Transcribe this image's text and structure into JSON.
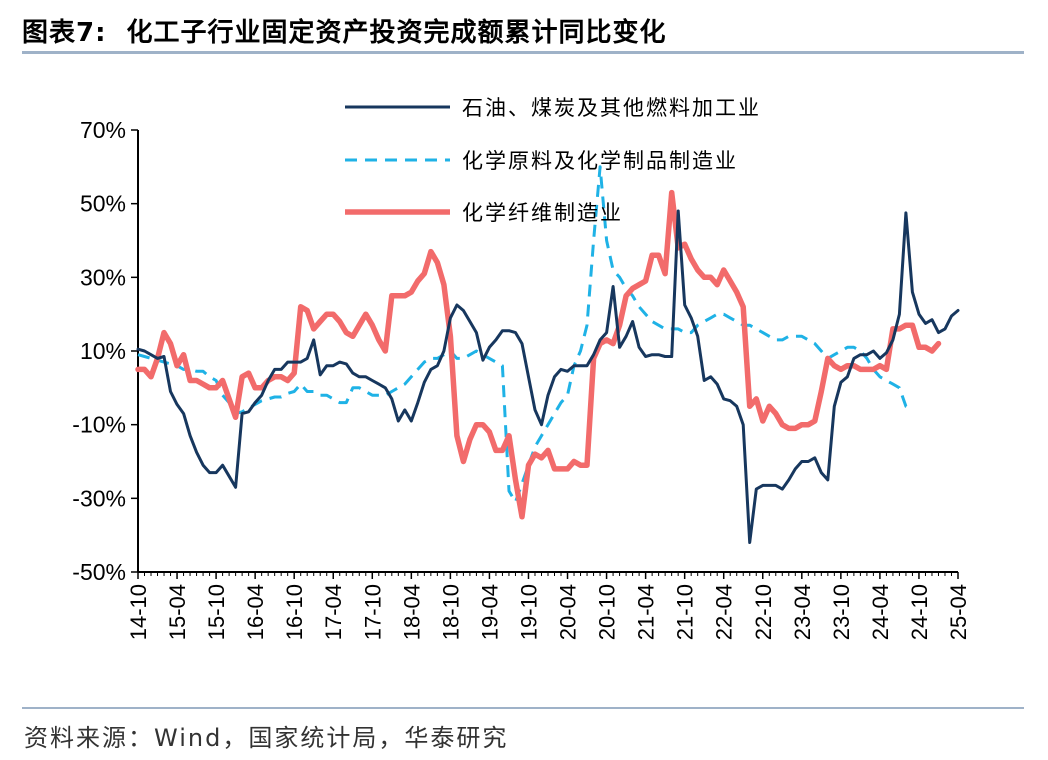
{
  "header": {
    "figure_label": "图表7:",
    "title": "化工子行业固定资产投资完成额累计同比变化"
  },
  "footer": {
    "source": "资料来源：Wind，国家统计局，华泰研究"
  },
  "chart_data": {
    "type": "line",
    "ylim": [
      -50,
      70
    ],
    "y_ticks": [
      "70%",
      "50%",
      "30%",
      "10%",
      "-10%",
      "-30%",
      "-50%"
    ],
    "y_tick_values": [
      70,
      50,
      30,
      10,
      -10,
      -30,
      -50
    ],
    "x_tick_labels": [
      "14-10",
      "15-04",
      "15-10",
      "16-04",
      "16-10",
      "17-04",
      "17-10",
      "18-04",
      "18-10",
      "19-04",
      "19-10",
      "20-04",
      "20-10",
      "21-04",
      "21-10",
      "22-04",
      "22-10",
      "23-04",
      "23-10",
      "24-04",
      "24-10",
      "25-04"
    ],
    "x_start": "14-10",
    "x_end": "25-09",
    "legend_position": "top-center",
    "colors": {
      "s1": "#17375e",
      "s2": "#1fb2e6",
      "s3": "#f26b6b"
    },
    "series": [
      {
        "name": "石油、煤炭及其他燃料加工业",
        "style": "solid",
        "values": [
          10.5,
          10,
          9,
          8,
          8.5,
          -1,
          -4.5,
          -7,
          -13,
          -17.5,
          -21,
          -23,
          -23,
          -21,
          -24,
          -27,
          -7,
          -6.5,
          -4,
          -2,
          2,
          5,
          5,
          7,
          7,
          7,
          8,
          13,
          3.5,
          6,
          6,
          7,
          6.5,
          4,
          3,
          3,
          2,
          1,
          0,
          -3,
          -9,
          -6,
          -9,
          -4,
          1.5,
          5,
          6,
          10,
          19,
          22.5,
          21,
          18,
          15,
          7.5,
          11,
          13,
          15.5,
          15.5,
          15,
          12,
          3,
          -6,
          -10,
          -2,
          3,
          5,
          4.5,
          6,
          6,
          6,
          9,
          13,
          15,
          27.5,
          11,
          14,
          18,
          11,
          8.5,
          9,
          9,
          8.5,
          8.5,
          48,
          22.5,
          19,
          14,
          2,
          3,
          1,
          -3,
          -3.5,
          -5,
          -10,
          -42,
          -27.5,
          -26.5,
          -26.5,
          -26.5,
          -27.5,
          -25,
          -22,
          -20,
          -20,
          -19,
          -23,
          -25,
          -5,
          1.5,
          3,
          8,
          9,
          9,
          10,
          8,
          9.5,
          13,
          20,
          47.5,
          26,
          20,
          17.5,
          18.5,
          15,
          16,
          19.5,
          21
        ]
      },
      {
        "name": "化学原料及化学制品制造业",
        "style": "dashed",
        "values": [
          9,
          8.5,
          8,
          7.5,
          7,
          6.5,
          6,
          5,
          5,
          4.5,
          4.5,
          3,
          2,
          -2,
          -4,
          -7,
          -6.5,
          -5.5,
          -4.5,
          -3.5,
          -3,
          -2.5,
          -2.5,
          -1.5,
          -1,
          1,
          -1,
          -1,
          -2,
          -2,
          -3,
          -4,
          -4,
          0,
          0,
          -1,
          -2,
          -2,
          -2,
          -1,
          0,
          1,
          3,
          5,
          7,
          8,
          8,
          9,
          10,
          8,
          8,
          9,
          10,
          9,
          8,
          7,
          6,
          -28,
          -31,
          -26,
          -21,
          -16,
          -13,
          -10,
          -7,
          -4,
          -2,
          6,
          10,
          17,
          40,
          60,
          40,
          32,
          30,
          27,
          25,
          22,
          20,
          18,
          17,
          16,
          16,
          16,
          15,
          15,
          17,
          18,
          19,
          20,
          20,
          19,
          18,
          17,
          17,
          16,
          15,
          14,
          13,
          13,
          14,
          14,
          14,
          13,
          12,
          10,
          8,
          9,
          10,
          11,
          11,
          10,
          8,
          5,
          3,
          2,
          1,
          0,
          -5,
          -6
        ]
      },
      {
        "name": "化学纤维制造业",
        "style": "solid",
        "values": [
          5,
          5,
          3,
          8,
          15,
          12,
          6,
          9,
          2,
          2,
          1,
          0,
          0,
          2,
          -3,
          -8,
          3,
          4,
          0,
          0,
          2,
          3,
          3,
          2,
          4,
          22,
          21,
          16,
          18,
          20,
          20,
          18,
          15,
          14,
          17,
          20,
          17,
          13,
          10,
          25,
          25,
          25,
          26,
          29,
          31,
          37,
          34,
          28,
          14,
          -13,
          -20,
          -14,
          -10,
          -10,
          -12,
          -17,
          -17,
          -13,
          -25,
          -35,
          -21,
          -18,
          -19,
          -17,
          -22,
          -22,
          -22,
          -20,
          -21,
          -21,
          8,
          12,
          13,
          12,
          17,
          25,
          27,
          28,
          29,
          36,
          36,
          31,
          53,
          38,
          39,
          35,
          32,
          30,
          30,
          28,
          32,
          29,
          26,
          22,
          -5,
          -3,
          -9,
          -5,
          -7,
          -10,
          -11,
          -11,
          -10,
          -10,
          -9,
          -1,
          8,
          6,
          5,
          6,
          6,
          5,
          5,
          5,
          6,
          5,
          16,
          16,
          17,
          17,
          11,
          11,
          10,
          12
        ]
      }
    ]
  }
}
